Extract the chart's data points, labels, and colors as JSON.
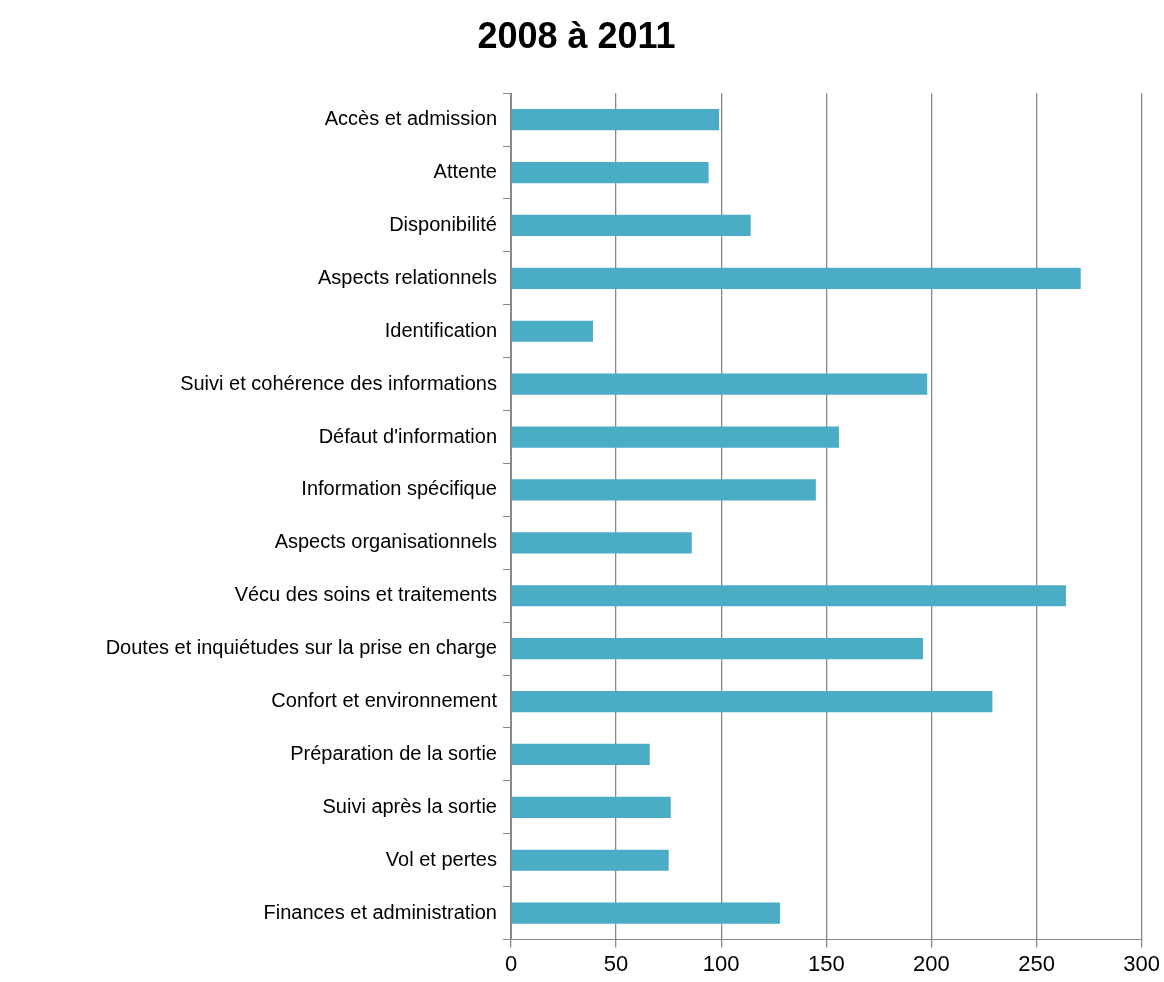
{
  "chart_data": {
    "type": "bar",
    "orientation": "horizontal",
    "title": "2008 à 2011",
    "categories": [
      "Accès et admission",
      "Attente",
      "Disponibilité",
      "Aspects relationnels",
      "Identification",
      "Suivi et cohérence des informations",
      "Défaut d'information",
      "Information spécifique",
      "Aspects organisationnels",
      "Vécu des soins et traitements",
      "Doutes et inquiétudes sur la prise en charge",
      "Confort et environnement",
      "Préparation de la sortie",
      "Suivi après la sortie",
      "Vol et pertes",
      "Finances et administration"
    ],
    "values": [
      99,
      94,
      114,
      271,
      39,
      198,
      156,
      145,
      86,
      264,
      196,
      229,
      66,
      76,
      75,
      128
    ],
    "color": "#4bacc6",
    "xlim": [
      0,
      300
    ],
    "xticks": [
      0,
      50,
      100,
      150,
      200,
      250,
      300
    ],
    "grid": "x",
    "legend": false
  }
}
